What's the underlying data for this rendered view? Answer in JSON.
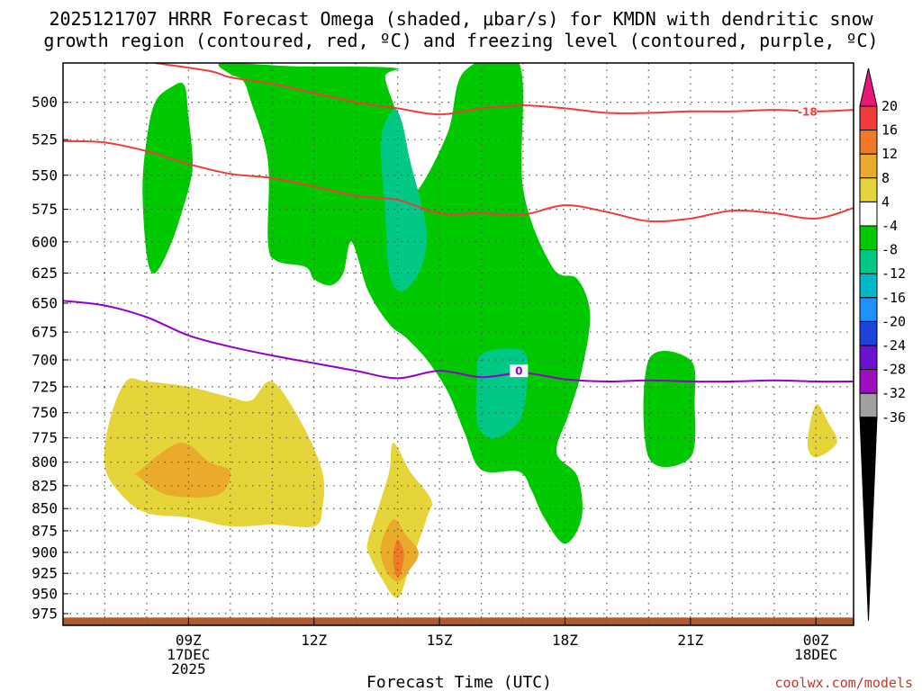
{
  "chart_data": {
    "type": "contour-cross-section",
    "title_line1": "2025121707 HRRR Forecast Omega (shaded, μbar/s) for KMDN with dendritic snow",
    "title_line2": "growth region (contoured, red, ºC) and freezing level (contoured, purple, ºC)",
    "xlabel": "Forecast Time (UTC)",
    "credit": "coolwx.com/models",
    "x_range_hours": [
      6.0,
      24.9
    ],
    "y_range_hPa": [
      475,
      990
    ],
    "y_ticks": [
      500,
      525,
      550,
      575,
      600,
      625,
      650,
      675,
      700,
      725,
      750,
      775,
      800,
      825,
      850,
      875,
      900,
      925,
      950,
      975
    ],
    "x_ticks": [
      {
        "hour": 9,
        "lines": [
          "09Z",
          "17DEC",
          "2025"
        ]
      },
      {
        "hour": 12,
        "lines": [
          "12Z"
        ]
      },
      {
        "hour": 15,
        "lines": [
          "15Z"
        ]
      },
      {
        "hour": 18,
        "lines": [
          "18Z"
        ]
      },
      {
        "hour": 21,
        "lines": [
          "21Z"
        ]
      },
      {
        "hour": 24,
        "lines": [
          "00Z",
          "18DEC"
        ]
      }
    ],
    "colorbar": {
      "levels": [
        "20",
        "16",
        "12",
        "8",
        "4",
        "-4",
        "-8",
        "-12",
        "-16",
        "-20",
        "-24",
        "-28",
        "-32",
        "-36"
      ],
      "colors": [
        "#e8177a",
        "#ee3b3b",
        "#f07a28",
        "#eaab2d",
        "#e6d53a",
        "#ffffff",
        "#00c900",
        "#00c988",
        "#00b8c8",
        "#1e90ff",
        "#1c44dd",
        "#6a12cf",
        "#9d0fc0",
        "#a0a0a0",
        "#000000"
      ]
    },
    "omega_regions": [
      {
        "name": "omega-neg4-to-neg8-main",
        "color": "#00c900",
        "points": [
          [
            9.8,
            475
          ],
          [
            11.5,
            477
          ],
          [
            13.9,
            478
          ],
          [
            13.7,
            484
          ],
          [
            14.0,
            510
          ],
          [
            14.3,
            550
          ],
          [
            14.5,
            560
          ],
          [
            15.2,
            520
          ],
          [
            15.6,
            480
          ],
          [
            16.9,
            475
          ],
          [
            17.0,
            560
          ],
          [
            17.7,
            620
          ],
          [
            18.3,
            630
          ],
          [
            18.6,
            660
          ],
          [
            18.4,
            710
          ],
          [
            18.1,
            750
          ],
          [
            17.8,
            790
          ],
          [
            18.3,
            815
          ],
          [
            18.4,
            860
          ],
          [
            18.0,
            890
          ],
          [
            17.5,
            860
          ],
          [
            17.2,
            830
          ],
          [
            16.9,
            810
          ],
          [
            16.0,
            808
          ],
          [
            15.6,
            770
          ],
          [
            15.2,
            730
          ],
          [
            14.7,
            700
          ],
          [
            14.2,
            680
          ],
          [
            13.8,
            668
          ],
          [
            13.3,
            640
          ],
          [
            12.9,
            600
          ],
          [
            12.7,
            625
          ],
          [
            12.4,
            635
          ],
          [
            12.0,
            630
          ],
          [
            11.8,
            620
          ],
          [
            11.1,
            615
          ],
          [
            10.9,
            600
          ],
          [
            10.9,
            540
          ],
          [
            10.5,
            500
          ],
          [
            10.3,
            486
          ],
          [
            10.0,
            482
          ]
        ]
      },
      {
        "name": "omega-neg4-to-neg8-west",
        "color": "#00c900",
        "points": [
          [
            8.0,
            525
          ],
          [
            8.2,
            500
          ],
          [
            8.6,
            490
          ],
          [
            8.9,
            489
          ],
          [
            9.0,
            510
          ],
          [
            9.1,
            540
          ],
          [
            9.0,
            560
          ],
          [
            8.6,
            600
          ],
          [
            8.2,
            625
          ],
          [
            8.0,
            610
          ],
          [
            7.9,
            560
          ]
        ]
      },
      {
        "name": "omega-neg4-to-neg8-east",
        "color": "#00c900",
        "points": [
          [
            20.0,
            700
          ],
          [
            21.0,
            700
          ],
          [
            21.1,
            740
          ],
          [
            21.0,
            795
          ],
          [
            20.0,
            795
          ]
        ]
      },
      {
        "name": "omega-neg8-to-neg12-upper",
        "color": "#00c988",
        "points": [
          [
            13.9,
            505
          ],
          [
            14.1,
            513
          ],
          [
            14.3,
            540
          ],
          [
            14.6,
            575
          ],
          [
            14.7,
            600
          ],
          [
            14.5,
            625
          ],
          [
            14.1,
            640
          ],
          [
            13.8,
            625
          ],
          [
            13.7,
            575
          ],
          [
            13.6,
            525
          ]
        ]
      },
      {
        "name": "omega-neg8-to-neg12-mid",
        "color": "#00c988",
        "points": [
          [
            16.0,
            695
          ],
          [
            16.8,
            690
          ],
          [
            17.1,
            700
          ],
          [
            17.0,
            750
          ],
          [
            16.6,
            770
          ],
          [
            16.2,
            775
          ],
          [
            15.9,
            760
          ],
          [
            15.9,
            720
          ]
        ]
      },
      {
        "name": "omega-4-to-8-west",
        "color": "#e6d53a",
        "points": [
          [
            7.0,
            805
          ],
          [
            7.1,
            760
          ],
          [
            7.5,
            720
          ],
          [
            8.0,
            720
          ],
          [
            9.0,
            725
          ],
          [
            10.0,
            735
          ],
          [
            10.5,
            738
          ],
          [
            11.0,
            720
          ],
          [
            11.7,
            760
          ],
          [
            12.2,
            810
          ],
          [
            12.2,
            850
          ],
          [
            12.0,
            870
          ],
          [
            11.0,
            868
          ],
          [
            10.0,
            870
          ],
          [
            9.0,
            860
          ],
          [
            8.0,
            855
          ],
          [
            7.4,
            835
          ]
        ]
      },
      {
        "name": "omega-8-to-12-west",
        "color": "#eaab2d",
        "points": [
          [
            7.8,
            810
          ],
          [
            8.8,
            780
          ],
          [
            9.5,
            800
          ],
          [
            10.0,
            810
          ],
          [
            9.7,
            835
          ],
          [
            8.5,
            835
          ],
          [
            7.8,
            815
          ]
        ]
      },
      {
        "name": "omega-4-to-8-center",
        "color": "#e6d53a",
        "points": [
          [
            13.3,
            885
          ],
          [
            13.6,
            840
          ],
          [
            13.8,
            810
          ],
          [
            13.9,
            780
          ],
          [
            14.3,
            810
          ],
          [
            14.8,
            840
          ],
          [
            14.7,
            860
          ],
          [
            14.3,
            915
          ],
          [
            14.0,
            955
          ],
          [
            13.6,
            930
          ],
          [
            13.3,
            900
          ]
        ]
      },
      {
        "name": "omega-8-to-12-center",
        "color": "#eaab2d",
        "points": [
          [
            13.6,
            892
          ],
          [
            13.9,
            862
          ],
          [
            14.2,
            880
          ],
          [
            14.5,
            900
          ],
          [
            14.3,
            920
          ],
          [
            14.0,
            935
          ],
          [
            13.7,
            920
          ]
        ]
      },
      {
        "name": "omega-12-to-16-center",
        "color": "#f07a28",
        "points": [
          [
            13.9,
            900
          ],
          [
            14.0,
            885
          ],
          [
            14.15,
            900
          ],
          [
            14.1,
            920
          ],
          [
            14.0,
            930
          ],
          [
            13.9,
            915
          ]
        ]
      },
      {
        "name": "omega-4-to-8-east",
        "color": "#e6d53a",
        "points": [
          [
            24.0,
            742
          ],
          [
            24.3,
            760
          ],
          [
            24.5,
            780
          ],
          [
            24.0,
            795
          ],
          [
            23.8,
            780
          ]
        ]
      }
    ],
    "contours": [
      {
        "name": "dendritic-minus18-contour",
        "color": "#ee3b3b",
        "label": "-18",
        "label_at": [
          23.8,
          506
        ],
        "points": [
          [
            8.2,
            475
          ],
          [
            9.5,
            480
          ],
          [
            10.0,
            484
          ],
          [
            11.0,
            488
          ],
          [
            12.0,
            494
          ],
          [
            13.0,
            500
          ],
          [
            14.0,
            504
          ],
          [
            15.0,
            508
          ],
          [
            16.0,
            504
          ],
          [
            17.0,
            502
          ],
          [
            18.0,
            504
          ],
          [
            19.0,
            507
          ],
          [
            20.0,
            507
          ],
          [
            21.0,
            506
          ],
          [
            22.0,
            506
          ],
          [
            23.0,
            505
          ],
          [
            24.0,
            506
          ],
          [
            24.9,
            505
          ]
        ]
      },
      {
        "name": "dendritic-minus12-contour",
        "color": "#ee3b3b",
        "label": "",
        "label_at": null,
        "points": [
          [
            6.0,
            526
          ],
          [
            7.0,
            527
          ],
          [
            8.0,
            533
          ],
          [
            9.0,
            542
          ],
          [
            10.0,
            549
          ],
          [
            11.0,
            552
          ],
          [
            12.0,
            558
          ],
          [
            13.0,
            565
          ],
          [
            14.0,
            568
          ],
          [
            15.0,
            578
          ],
          [
            16.0,
            578
          ],
          [
            17.0,
            579
          ],
          [
            18.0,
            572
          ],
          [
            19.0,
            577
          ],
          [
            20.0,
            584
          ],
          [
            21.0,
            582
          ],
          [
            22.0,
            576
          ],
          [
            23.0,
            578
          ],
          [
            24.0,
            582
          ],
          [
            24.9,
            574
          ]
        ]
      },
      {
        "name": "freezing-level-contour",
        "color": "#9400c8",
        "label": "0",
        "label_at": [
          16.9,
          710
        ],
        "points": [
          [
            6.0,
            648
          ],
          [
            7.0,
            652
          ],
          [
            8.0,
            662
          ],
          [
            9.0,
            678
          ],
          [
            10.0,
            688
          ],
          [
            11.0,
            696
          ],
          [
            12.0,
            703
          ],
          [
            13.0,
            710
          ],
          [
            14.0,
            717
          ],
          [
            15.0,
            710
          ],
          [
            16.0,
            716
          ],
          [
            17.0,
            712
          ],
          [
            18.0,
            718
          ],
          [
            19.0,
            720
          ],
          [
            20.0,
            719
          ],
          [
            21.0,
            720
          ],
          [
            22.0,
            720
          ],
          [
            23.0,
            719
          ],
          [
            24.0,
            720
          ],
          [
            24.9,
            720
          ]
        ]
      }
    ],
    "ground_band_hPa": [
      980,
      990
    ],
    "ground_color": "#b05a2e"
  }
}
